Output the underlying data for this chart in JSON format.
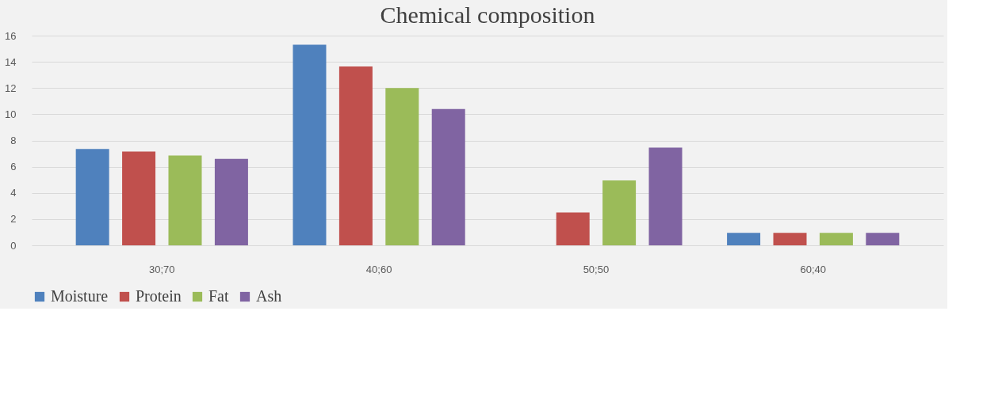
{
  "chart_data": {
    "type": "bar",
    "title": "Chemical composition",
    "categories": [
      "30;70",
      "40;60",
      "50;50",
      "60;40"
    ],
    "series": [
      {
        "name": "Moisture",
        "color": "#4f81bd",
        "values": [
          7.35,
          15.3,
          0,
          0.95
        ]
      },
      {
        "name": "Protein",
        "color": "#c0504d",
        "values": [
          7.15,
          13.65,
          2.5,
          0.95
        ]
      },
      {
        "name": "Fat",
        "color": "#9bbb59",
        "values": [
          6.85,
          12.0,
          4.95,
          0.95
        ]
      },
      {
        "name": "Ash",
        "color": "#8064a2",
        "values": [
          6.6,
          10.4,
          7.45,
          0.95
        ]
      }
    ],
    "ylim": [
      0,
      16
    ],
    "yticks": [
      0,
      2,
      4,
      6,
      8,
      10,
      12,
      14,
      16
    ],
    "grid": "y",
    "legend": "bottom"
  }
}
